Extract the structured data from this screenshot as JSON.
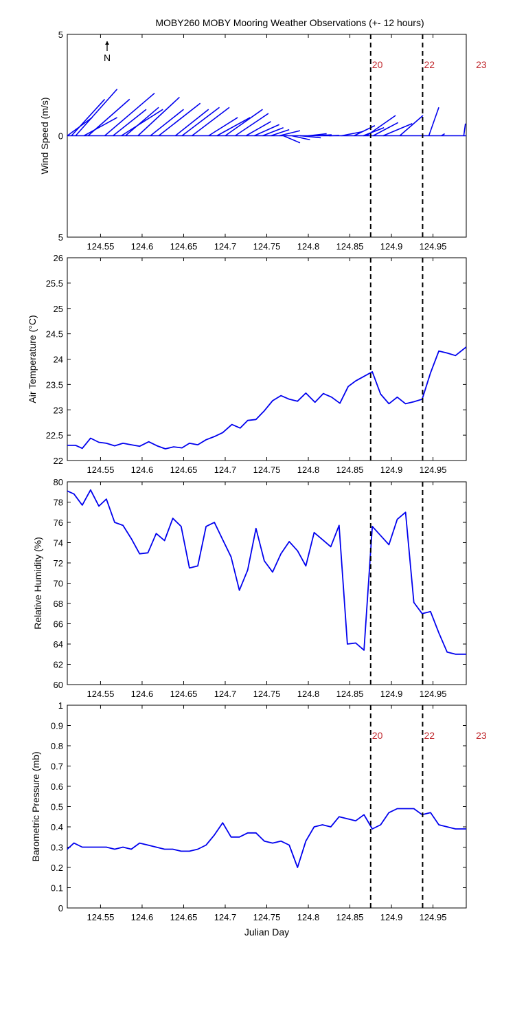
{
  "figure_title": "MOBY260 MOBY Mooring Weather Observations (+- 12 hours)",
  "colors": {
    "series": "#0000ee",
    "marker": "#000000",
    "marker_label": "#c0282d",
    "axes": "#000000"
  },
  "markers": {
    "vertical_lines_x": [
      124.875,
      124.9375
    ],
    "labels": [
      {
        "text": "20",
        "x": 124.875
      },
      {
        "text": "22",
        "x": 124.9375
      },
      {
        "text": "23",
        "x": 125.0
      }
    ]
  },
  "north_label": "N",
  "chart_data": [
    {
      "id": "wind",
      "type": "vector",
      "title": "",
      "ylabel": "Wind Speed (m/s)",
      "xlabel": "",
      "xlim": [
        124.51,
        124.99
      ],
      "ylim": [
        -5,
        5
      ],
      "yticks": [
        -5,
        0,
        5
      ],
      "ytick_labels": [
        "5",
        "0",
        "5"
      ],
      "xticks": [
        124.55,
        124.6,
        124.65,
        124.7,
        124.75,
        124.8,
        124.85,
        124.9,
        124.95
      ],
      "xtick_labels": [
        "124.55",
        "124.6",
        "124.65",
        "124.7",
        "124.75",
        "124.8",
        "124.85",
        "124.9",
        "124.95"
      ],
      "marker_labels": true,
      "vectors": [
        {
          "t": 124.51,
          "u": 0.03,
          "v": 0.9
        },
        {
          "t": 124.515,
          "u": 0.04,
          "v": 1.8
        },
        {
          "t": 124.52,
          "u": 0.05,
          "v": 2.3
        },
        {
          "t": 124.53,
          "u": 0.04,
          "v": 0.9
        },
        {
          "t": 124.535,
          "u": 0.05,
          "v": 1.8
        },
        {
          "t": 124.555,
          "u": 0.06,
          "v": 2.1
        },
        {
          "t": 124.565,
          "u": 0.04,
          "v": 1.3
        },
        {
          "t": 124.58,
          "u": 0.04,
          "v": 1.4
        },
        {
          "t": 124.575,
          "u": 0.05,
          "v": 1.3
        },
        {
          "t": 124.595,
          "u": 0.05,
          "v": 1.9
        },
        {
          "t": 124.61,
          "u": 0.04,
          "v": 1.3
        },
        {
          "t": 124.62,
          "u": 0.05,
          "v": 1.6
        },
        {
          "t": 124.64,
          "u": 0.04,
          "v": 1.3
        },
        {
          "t": 124.648,
          "u": 0.045,
          "v": 1.4
        },
        {
          "t": 124.66,
          "u": 0.045,
          "v": 1.4
        },
        {
          "t": 124.68,
          "u": 0.035,
          "v": 0.9
        },
        {
          "t": 124.69,
          "u": 0.04,
          "v": 0.9
        },
        {
          "t": 124.7,
          "u": 0.045,
          "v": 1.3
        },
        {
          "t": 124.712,
          "u": 0.04,
          "v": 1.1
        },
        {
          "t": 124.725,
          "u": 0.03,
          "v": 0.7
        },
        {
          "t": 124.735,
          "u": 0.03,
          "v": 0.55
        },
        {
          "t": 124.745,
          "u": 0.025,
          "v": 0.4
        },
        {
          "t": 124.755,
          "u": 0.022,
          "v": 0.3
        },
        {
          "t": 124.765,
          "u": 0.025,
          "v": 0.25
        },
        {
          "t": 124.77,
          "u": 0.02,
          "v": -0.35
        },
        {
          "t": 124.78,
          "u": 0.022,
          "v": -0.2
        },
        {
          "t": 124.79,
          "u": 0.025,
          "v": -0.1
        },
        {
          "t": 124.8,
          "u": 0.022,
          "v": 0.1
        },
        {
          "t": 124.81,
          "u": 0.018,
          "v": 0.05
        },
        {
          "t": 124.825,
          "u": 0.012,
          "v": 0.02
        },
        {
          "t": 124.84,
          "u": 0.025,
          "v": 0.2
        },
        {
          "t": 124.855,
          "u": 0.025,
          "v": 0.5
        },
        {
          "t": 124.866,
          "u": 0.025,
          "v": 0.4
        },
        {
          "t": 124.87,
          "u": 0.035,
          "v": 1.0
        },
        {
          "t": 124.878,
          "u": 0.03,
          "v": 0.65
        },
        {
          "t": 124.89,
          "u": 0.035,
          "v": 0.6
        },
        {
          "t": 124.91,
          "u": 0.028,
          "v": 1.0
        },
        {
          "t": 124.945,
          "u": 0.012,
          "v": 1.4
        },
        {
          "t": 124.96,
          "u": 0.004,
          "v": 0.1
        },
        {
          "t": 124.987,
          "u": 0.002,
          "v": 0.6
        }
      ]
    },
    {
      "id": "airtemp",
      "type": "line",
      "title": "",
      "ylabel": "Air Temperature (°C)",
      "xlabel": "",
      "xlim": [
        124.51,
        124.99
      ],
      "ylim": [
        22,
        26
      ],
      "yticks": [
        22,
        22.5,
        23,
        23.5,
        24,
        24.5,
        25,
        25.5,
        26
      ],
      "ytick_labels": [
        "22",
        "22.5",
        "23",
        "23.5",
        "24",
        "24.5",
        "25",
        "25.5",
        "26"
      ],
      "xticks": [
        124.55,
        124.6,
        124.65,
        124.7,
        124.75,
        124.8,
        124.85,
        124.9,
        124.95
      ],
      "xtick_labels": [
        "124.55",
        "124.6",
        "124.65",
        "124.7",
        "124.75",
        "124.8",
        "124.85",
        "124.9",
        "124.95"
      ],
      "marker_labels": false,
      "series": [
        {
          "x": [
            124.51,
            124.52,
            124.528,
            124.538,
            124.548,
            124.557,
            124.567,
            124.577,
            124.587,
            124.597,
            124.608,
            124.618,
            124.628,
            124.638,
            124.648,
            124.657,
            124.667,
            124.677,
            124.688,
            124.697,
            124.708,
            124.718,
            124.727,
            124.737,
            124.747,
            124.757,
            124.767,
            124.777,
            124.787,
            124.797,
            124.808,
            124.818,
            124.828,
            124.838,
            124.848,
            124.857,
            124.867,
            124.877,
            124.887,
            124.897,
            124.907,
            124.917,
            124.927,
            124.937,
            124.947,
            124.957,
            124.967,
            124.977,
            124.99
          ],
          "values": [
            22.3,
            22.3,
            22.24,
            22.44,
            22.36,
            22.34,
            22.29,
            22.34,
            22.31,
            22.28,
            22.37,
            22.29,
            22.23,
            22.27,
            22.25,
            22.34,
            22.31,
            22.41,
            22.48,
            22.55,
            22.71,
            22.64,
            22.79,
            22.81,
            22.98,
            23.18,
            23.28,
            23.21,
            23.17,
            23.33,
            23.15,
            23.32,
            23.25,
            23.13,
            23.46,
            23.57,
            23.66,
            23.75,
            23.31,
            23.12,
            23.25,
            23.12,
            23.16,
            23.21,
            23.73,
            24.16,
            24.12,
            24.07,
            24.24
          ]
        }
      ]
    },
    {
      "id": "humidity",
      "type": "line",
      "title": "",
      "ylabel": "Relative Humidity (%)",
      "xlabel": "",
      "xlim": [
        124.51,
        124.99
      ],
      "ylim": [
        60,
        80
      ],
      "yticks": [
        60,
        62,
        64,
        66,
        68,
        70,
        72,
        74,
        76,
        78,
        80
      ],
      "ytick_labels": [
        "60",
        "62",
        "64",
        "66",
        "68",
        "70",
        "72",
        "74",
        "76",
        "78",
        "80"
      ],
      "xticks": [
        124.55,
        124.6,
        124.65,
        124.7,
        124.75,
        124.8,
        124.85,
        124.9,
        124.95
      ],
      "xtick_labels": [
        "124.55",
        "124.6",
        "124.65",
        "124.7",
        "124.75",
        "124.8",
        "124.85",
        "124.9",
        "124.95"
      ],
      "marker_labels": false,
      "series": [
        {
          "x": [
            124.51,
            124.518,
            124.528,
            124.538,
            124.548,
            124.557,
            124.567,
            124.577,
            124.587,
            124.597,
            124.607,
            124.617,
            124.627,
            124.637,
            124.647,
            124.657,
            124.667,
            124.677,
            124.687,
            124.697,
            124.707,
            124.717,
            124.727,
            124.737,
            124.747,
            124.757,
            124.767,
            124.777,
            124.787,
            124.797,
            124.807,
            124.817,
            124.827,
            124.837,
            124.847,
            124.857,
            124.867,
            124.877,
            124.887,
            124.897,
            124.907,
            124.917,
            124.927,
            124.937,
            124.947,
            124.957,
            124.967,
            124.977,
            124.99
          ],
          "values": [
            79.1,
            78.8,
            77.7,
            79.2,
            77.6,
            78.3,
            76.0,
            75.7,
            74.4,
            72.9,
            73.0,
            74.9,
            74.2,
            76.4,
            75.6,
            71.5,
            71.7,
            75.6,
            76.0,
            74.3,
            72.6,
            69.3,
            71.3,
            75.4,
            72.2,
            71.1,
            72.9,
            74.1,
            73.2,
            71.7,
            75.0,
            74.3,
            73.6,
            75.7,
            64.0,
            64.1,
            63.4,
            75.6,
            74.7,
            73.8,
            76.3,
            77.0,
            68.1,
            67.0,
            67.2,
            65.1,
            63.2,
            63.0,
            63.0
          ]
        }
      ]
    },
    {
      "id": "pressure",
      "type": "line",
      "title": "",
      "ylabel": "Barometric Pressure (mb)",
      "xlabel": "Julian Day",
      "xlim": [
        124.51,
        124.99
      ],
      "ylim": [
        0,
        1
      ],
      "yticks": [
        0,
        0.1,
        0.2,
        0.3,
        0.4,
        0.5,
        0.6,
        0.7,
        0.8,
        0.9,
        1
      ],
      "ytick_labels": [
        "0",
        "0.1",
        "0.2",
        "0.3",
        "0.4",
        "0.5",
        "0.6",
        "0.7",
        "0.8",
        "0.9",
        "1"
      ],
      "xticks": [
        124.55,
        124.6,
        124.65,
        124.7,
        124.75,
        124.8,
        124.85,
        124.9,
        124.95
      ],
      "xtick_labels": [
        "124.55",
        "124.6",
        "124.65",
        "124.7",
        "124.75",
        "124.8",
        "124.85",
        "124.9",
        "124.95"
      ],
      "marker_labels": true,
      "series": [
        {
          "x": [
            124.51,
            124.518,
            124.528,
            124.538,
            124.548,
            124.557,
            124.567,
            124.577,
            124.587,
            124.597,
            124.607,
            124.617,
            124.627,
            124.637,
            124.647,
            124.657,
            124.667,
            124.677,
            124.687,
            124.697,
            124.707,
            124.717,
            124.727,
            124.737,
            124.747,
            124.757,
            124.767,
            124.777,
            124.787,
            124.797,
            124.807,
            124.817,
            124.827,
            124.837,
            124.847,
            124.857,
            124.867,
            124.877,
            124.887,
            124.897,
            124.907,
            124.917,
            124.927,
            124.937,
            124.947,
            124.957,
            124.967,
            124.977,
            124.99
          ],
          "values": [
            0.29,
            0.32,
            0.3,
            0.3,
            0.3,
            0.3,
            0.29,
            0.3,
            0.29,
            0.32,
            0.31,
            0.3,
            0.29,
            0.29,
            0.28,
            0.28,
            0.29,
            0.31,
            0.36,
            0.42,
            0.35,
            0.35,
            0.37,
            0.37,
            0.33,
            0.32,
            0.33,
            0.31,
            0.2,
            0.33,
            0.4,
            0.41,
            0.4,
            0.45,
            0.44,
            0.43,
            0.46,
            0.39,
            0.41,
            0.47,
            0.49,
            0.49,
            0.49,
            0.46,
            0.47,
            0.41,
            0.4,
            0.39,
            0.39
          ]
        }
      ]
    }
  ]
}
